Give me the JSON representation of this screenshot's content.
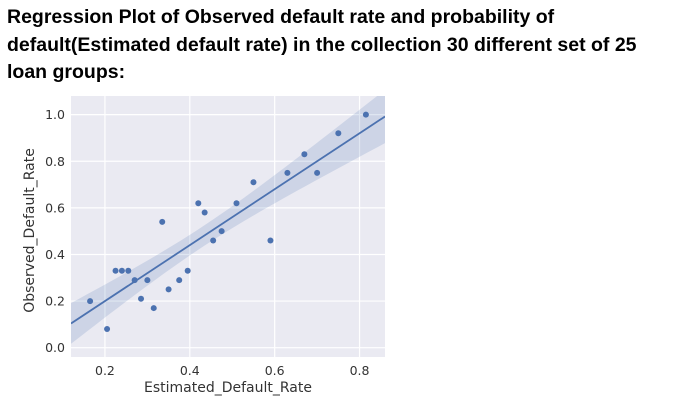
{
  "heading": {
    "line1": "Regression Plot of Observed default rate and probability of",
    "line2": "default(Estimated default rate) in the collection 30 different set of 25",
    "line3": "loan groups:"
  },
  "chart_data": {
    "type": "scatter",
    "xlabel": "Estimated_Default_Rate",
    "ylabel": "Observed_Default_Rate",
    "xlim": [
      0.12,
      0.86
    ],
    "ylim": [
      -0.04,
      1.08
    ],
    "xticks": [
      0.2,
      0.4,
      0.6,
      0.8
    ],
    "yticks": [
      0.0,
      0.2,
      0.4,
      0.6,
      0.8,
      1.0
    ],
    "xtick_labels": [
      "0.2",
      "0.4",
      "0.6",
      "0.8"
    ],
    "ytick_labels": [
      "0.0",
      "0.2",
      "0.4",
      "0.6",
      "0.8",
      "1.0"
    ],
    "grid": true,
    "points": [
      {
        "x": 0.165,
        "y": 0.2
      },
      {
        "x": 0.205,
        "y": 0.08
      },
      {
        "x": 0.225,
        "y": 0.33
      },
      {
        "x": 0.24,
        "y": 0.33
      },
      {
        "x": 0.255,
        "y": 0.33
      },
      {
        "x": 0.27,
        "y": 0.29
      },
      {
        "x": 0.285,
        "y": 0.21
      },
      {
        "x": 0.3,
        "y": 0.29
      },
      {
        "x": 0.315,
        "y": 0.17
      },
      {
        "x": 0.335,
        "y": 0.54
      },
      {
        "x": 0.35,
        "y": 0.25
      },
      {
        "x": 0.375,
        "y": 0.29
      },
      {
        "x": 0.395,
        "y": 0.33
      },
      {
        "x": 0.42,
        "y": 0.62
      },
      {
        "x": 0.435,
        "y": 0.58
      },
      {
        "x": 0.455,
        "y": 0.46
      },
      {
        "x": 0.475,
        "y": 0.5
      },
      {
        "x": 0.51,
        "y": 0.62
      },
      {
        "x": 0.55,
        "y": 0.71
      },
      {
        "x": 0.59,
        "y": 0.46
      },
      {
        "x": 0.63,
        "y": 0.75
      },
      {
        "x": 0.67,
        "y": 0.83
      },
      {
        "x": 0.7,
        "y": 0.75
      },
      {
        "x": 0.75,
        "y": 0.92
      },
      {
        "x": 0.815,
        "y": 1.0
      }
    ],
    "regression": {
      "slope": 1.2,
      "intercept": -0.04
    },
    "colors": {
      "background": "#eaeaf2",
      "grid": "#ffffff",
      "points": "#4c72b0",
      "line": "#4c72b0",
      "band": "#4c72b0"
    }
  }
}
